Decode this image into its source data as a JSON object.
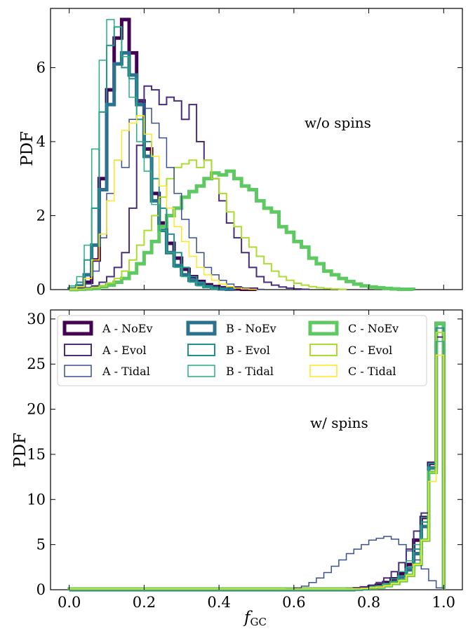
{
  "chart_data": [
    {
      "type": "line",
      "subtype": "step-histogram",
      "annotation": "w/o spins",
      "ylabel": "PDF",
      "xlabel": "",
      "xlim": [
        -0.05,
        1.05
      ],
      "ylim": [
        0,
        7.6
      ],
      "xticks": [
        "0.0",
        "0.2",
        "0.4",
        "0.6",
        "0.8",
        "1.0"
      ],
      "yticks": [
        0,
        2,
        4,
        6
      ],
      "bin_width": 0.02,
      "x_start": 0.0,
      "series": [
        {
          "name": "A - NoEv",
          "color": "#440154",
          "width": 5,
          "values": [
            0.02,
            0.06,
            0.2,
            0.8,
            3.0,
            5.4,
            6.8,
            7.3,
            6.4,
            5.1,
            3.8,
            2.6,
            1.8,
            1.25,
            0.85,
            0.55,
            0.35,
            0.22,
            0.13,
            0.08,
            0.05,
            0.03,
            0.02,
            0.01,
            0.01
          ]
        },
        {
          "name": "A - Evol",
          "color": "#472d7b",
          "width": 2,
          "values": [
            0.0,
            0.02,
            0.05,
            0.1,
            0.2,
            0.35,
            0.6,
            1.0,
            2.2,
            3.9,
            5.5,
            5.4,
            5.0,
            5.2,
            5.1,
            4.6,
            5.0,
            4.0,
            3.5,
            3.0,
            2.4,
            1.8,
            1.4,
            1.0,
            0.6,
            0.35,
            0.2,
            0.12,
            0.07,
            0.04,
            0.02,
            0.01
          ]
        },
        {
          "name": "A - Tidal",
          "color": "#3b518b",
          "width": 1.5,
          "values": [
            0.02,
            0.05,
            0.15,
            0.5,
            1.4,
            2.6,
            3.5,
            3.3,
            4.6,
            5.1,
            4.9,
            4.5,
            4.1,
            3.3,
            2.6,
            1.9,
            1.4,
            1.0,
            0.6,
            0.4,
            0.25,
            0.15,
            0.08,
            0.04,
            0.02,
            0.01
          ]
        },
        {
          "name": "B - NoEv",
          "color": "#2c728e",
          "width": 5,
          "values": [
            0.02,
            0.1,
            0.4,
            1.2,
            2.7,
            5.0,
            6.1,
            6.4,
            5.8,
            5.0,
            3.6,
            2.4,
            1.6,
            1.0,
            0.65,
            0.4,
            0.25,
            0.15,
            0.08,
            0.04,
            0.02,
            0.01
          ]
        },
        {
          "name": "B - Evol",
          "color": "#21918c",
          "width": 2,
          "values": [
            0.05,
            0.2,
            0.8,
            2.2,
            4.8,
            6.6,
            7.1,
            6.0,
            5.7,
            4.6,
            4.0,
            3.0,
            2.2,
            1.5,
            1.0,
            0.6,
            0.35,
            0.2,
            0.1,
            0.05,
            0.02
          ]
        },
        {
          "name": "B - Tidal",
          "color": "#28ae80",
          "width": 1.5,
          "values": [
            0.1,
            0.35,
            1.2,
            3.8,
            6.2,
            7.3,
            7.1,
            6.3,
            5.2,
            4.0,
            3.2,
            2.3,
            1.6,
            1.0,
            0.6,
            0.35,
            0.2,
            0.1,
            0.05,
            0.02
          ]
        },
        {
          "name": "C - NoEv",
          "color": "#5ec962",
          "width": 5,
          "values": [
            0.0,
            0.01,
            0.02,
            0.04,
            0.08,
            0.12,
            0.2,
            0.3,
            0.45,
            0.7,
            1.0,
            1.3,
            1.7,
            2.0,
            2.2,
            2.5,
            2.65,
            2.8,
            3.0,
            3.15,
            3.1,
            3.2,
            3.0,
            2.8,
            2.7,
            2.4,
            2.2,
            2.1,
            1.7,
            1.55,
            1.3,
            1.15,
            0.85,
            0.7,
            0.5,
            0.4,
            0.3,
            0.22,
            0.15,
            0.1,
            0.07,
            0.05,
            0.03,
            0.02,
            0.01,
            0.01
          ]
        },
        {
          "name": "C - Evol",
          "color": "#addc30",
          "width": 2,
          "values": [
            0.0,
            0.01,
            0.03,
            0.06,
            0.1,
            0.18,
            0.3,
            0.5,
            0.8,
            1.2,
            1.6,
            2.0,
            2.5,
            3.0,
            3.3,
            3.4,
            3.5,
            3.3,
            3.5,
            3.0,
            2.6,
            2.1,
            1.7,
            1.4,
            1.15,
            0.9,
            0.7,
            0.5,
            0.35,
            0.25,
            0.17,
            0.12,
            0.08,
            0.05,
            0.03,
            0.02,
            0.01
          ]
        },
        {
          "name": "C - Tidal",
          "color": "#fde725",
          "width": 1.5,
          "values": [
            0.02,
            0.08,
            0.3,
            0.8,
            1.5,
            2.4,
            3.5,
            4.3,
            4.5,
            4.7,
            4.2,
            3.6,
            2.8,
            2.2,
            1.7,
            1.3,
            0.9,
            0.6,
            0.4,
            0.25,
            0.15,
            0.08,
            0.04,
            0.02,
            0.01
          ]
        }
      ]
    },
    {
      "type": "line",
      "subtype": "step-histogram",
      "annotation": "w/ spins",
      "ylabel": "PDF",
      "xlabel": "f",
      "xlabel_sub": "GC",
      "xlim": [
        -0.05,
        1.05
      ],
      "ylim": [
        0,
        31
      ],
      "xticks": [
        "0.0",
        "0.2",
        "0.4",
        "0.6",
        "0.8",
        "1.0"
      ],
      "yticks": [
        0,
        5,
        10,
        15,
        20,
        25,
        30
      ],
      "legend": "top-left",
      "bin_width": 0.02,
      "x_start": 0.0,
      "series": [
        {
          "name": "A - NoEv",
          "color": "#440154",
          "width": 5,
          "values": [
            0.0,
            0.0,
            0.0,
            0.0,
            0.0,
            0.0,
            0.0,
            0.0,
            0.0,
            0.0,
            0.0,
            0.0,
            0.0,
            0.0,
            0.0,
            0.0,
            0.0,
            0.0,
            0.0,
            0.0,
            0.0,
            0.0,
            0.0,
            0.0,
            0.0,
            0.0,
            0.0,
            0.0,
            0.0,
            0.0,
            0.0,
            0.0,
            0.0,
            0.0,
            0.0,
            0.0,
            0.0,
            0.05,
            0.1,
            0.2,
            0.3,
            0.5,
            0.8,
            1.2,
            1.8,
            2.8,
            5.5,
            8.0,
            14.0,
            29.5
          ]
        },
        {
          "name": "A - Evol",
          "color": "#472d7b",
          "width": 2,
          "values": [
            0.0,
            0.0,
            0.0,
            0.0,
            0.0,
            0.0,
            0.0,
            0.0,
            0.0,
            0.0,
            0.0,
            0.0,
            0.0,
            0.0,
            0.0,
            0.0,
            0.0,
            0.0,
            0.0,
            0.0,
            0.0,
            0.0,
            0.0,
            0.0,
            0.0,
            0.0,
            0.0,
            0.0,
            0.0,
            0.0,
            0.0,
            0.0,
            0.0,
            0.0,
            0.0,
            0.0,
            0.05,
            0.1,
            0.2,
            0.3,
            0.5,
            0.8,
            1.3,
            2.0,
            3.0,
            4.5,
            6.5,
            8.5,
            13.5,
            28.0
          ]
        },
        {
          "name": "A - Tidal",
          "color": "#3b518b",
          "width": 1.5,
          "values": [
            0.0,
            0.0,
            0.0,
            0.0,
            0.0,
            0.0,
            0.0,
            0.0,
            0.0,
            0.0,
            0.0,
            0.0,
            0.0,
            0.0,
            0.0,
            0.0,
            0.0,
            0.0,
            0.0,
            0.0,
            0.0,
            0.0,
            0.0,
            0.0,
            0.0,
            0.0,
            0.0,
            0.0,
            0.05,
            0.1,
            0.2,
            0.4,
            0.8,
            1.3,
            1.9,
            2.6,
            3.3,
            4.0,
            4.5,
            5.0,
            5.5,
            5.7,
            5.9,
            5.6,
            5.0,
            4.3,
            3.3,
            2.3,
            1.0,
            0.2
          ]
        },
        {
          "name": "B - NoEv",
          "color": "#2c728e",
          "width": 5,
          "values": [
            0.0,
            0.0,
            0.0,
            0.0,
            0.0,
            0.0,
            0.0,
            0.0,
            0.0,
            0.0,
            0.0,
            0.0,
            0.0,
            0.0,
            0.0,
            0.0,
            0.0,
            0.0,
            0.0,
            0.0,
            0.0,
            0.0,
            0.0,
            0.0,
            0.0,
            0.0,
            0.0,
            0.0,
            0.0,
            0.0,
            0.0,
            0.0,
            0.0,
            0.0,
            0.0,
            0.0,
            0.0,
            0.0,
            0.05,
            0.1,
            0.2,
            0.3,
            0.5,
            0.8,
            1.4,
            2.2,
            4.0,
            7.0,
            13.5,
            29.5
          ]
        },
        {
          "name": "B - Evol",
          "color": "#21918c",
          "width": 2,
          "values": [
            0.0,
            0.0,
            0.0,
            0.0,
            0.0,
            0.0,
            0.0,
            0.0,
            0.0,
            0.0,
            0.0,
            0.0,
            0.0,
            0.0,
            0.0,
            0.0,
            0.0,
            0.0,
            0.0,
            0.0,
            0.0,
            0.0,
            0.0,
            0.0,
            0.0,
            0.0,
            0.0,
            0.0,
            0.0,
            0.0,
            0.0,
            0.0,
            0.0,
            0.0,
            0.0,
            0.0,
            0.0,
            0.0,
            0.05,
            0.1,
            0.15,
            0.3,
            0.5,
            0.9,
            1.5,
            2.5,
            4.5,
            7.5,
            14.0,
            29.0
          ]
        },
        {
          "name": "B - Tidal",
          "color": "#28ae80",
          "width": 1.5,
          "values": [
            0.0,
            0.0,
            0.0,
            0.0,
            0.0,
            0.0,
            0.0,
            0.0,
            0.0,
            0.0,
            0.0,
            0.0,
            0.0,
            0.0,
            0.0,
            0.0,
            0.0,
            0.0,
            0.0,
            0.0,
            0.0,
            0.0,
            0.0,
            0.0,
            0.0,
            0.0,
            0.0,
            0.0,
            0.0,
            0.0,
            0.0,
            0.0,
            0.0,
            0.0,
            0.0,
            0.0,
            0.0,
            0.0,
            0.05,
            0.1,
            0.2,
            0.4,
            0.7,
            1.2,
            2.0,
            3.2,
            5.0,
            8.0,
            13.5,
            27.5
          ]
        },
        {
          "name": "C - NoEv",
          "color": "#5ec962",
          "width": 5,
          "values": [
            0.08,
            0.08,
            0.08,
            0.08,
            0.08,
            0.08,
            0.08,
            0.08,
            0.08,
            0.08,
            0.08,
            0.08,
            0.08,
            0.08,
            0.08,
            0.08,
            0.08,
            0.08,
            0.08,
            0.08,
            0.08,
            0.08,
            0.08,
            0.08,
            0.08,
            0.08,
            0.08,
            0.08,
            0.08,
            0.08,
            0.08,
            0.08,
            0.08,
            0.08,
            0.08,
            0.08,
            0.08,
            0.08,
            0.1,
            0.15,
            0.2,
            0.3,
            0.45,
            0.7,
            1.0,
            1.6,
            2.8,
            5.5,
            13.0,
            29.5
          ]
        },
        {
          "name": "C - Evol",
          "color": "#addc30",
          "width": 2,
          "values": [
            0.08,
            0.08,
            0.08,
            0.08,
            0.08,
            0.08,
            0.08,
            0.08,
            0.08,
            0.08,
            0.08,
            0.08,
            0.08,
            0.08,
            0.08,
            0.08,
            0.08,
            0.08,
            0.08,
            0.08,
            0.08,
            0.08,
            0.08,
            0.08,
            0.08,
            0.08,
            0.08,
            0.08,
            0.08,
            0.08,
            0.08,
            0.08,
            0.08,
            0.08,
            0.08,
            0.08,
            0.08,
            0.08,
            0.1,
            0.15,
            0.2,
            0.3,
            0.45,
            0.7,
            1.0,
            1.6,
            2.8,
            5.5,
            13.0,
            28.5
          ]
        },
        {
          "name": "C - Tidal",
          "color": "#fde725",
          "width": 1.5,
          "values": [
            0.08,
            0.08,
            0.08,
            0.08,
            0.08,
            0.08,
            0.08,
            0.08,
            0.08,
            0.08,
            0.08,
            0.08,
            0.08,
            0.08,
            0.08,
            0.08,
            0.08,
            0.08,
            0.08,
            0.08,
            0.08,
            0.08,
            0.08,
            0.08,
            0.08,
            0.08,
            0.08,
            0.08,
            0.08,
            0.08,
            0.08,
            0.08,
            0.08,
            0.08,
            0.08,
            0.08,
            0.08,
            0.08,
            0.1,
            0.15,
            0.2,
            0.3,
            0.45,
            0.7,
            1.0,
            1.6,
            2.8,
            5.5,
            12.0,
            26.0
          ]
        }
      ]
    }
  ]
}
